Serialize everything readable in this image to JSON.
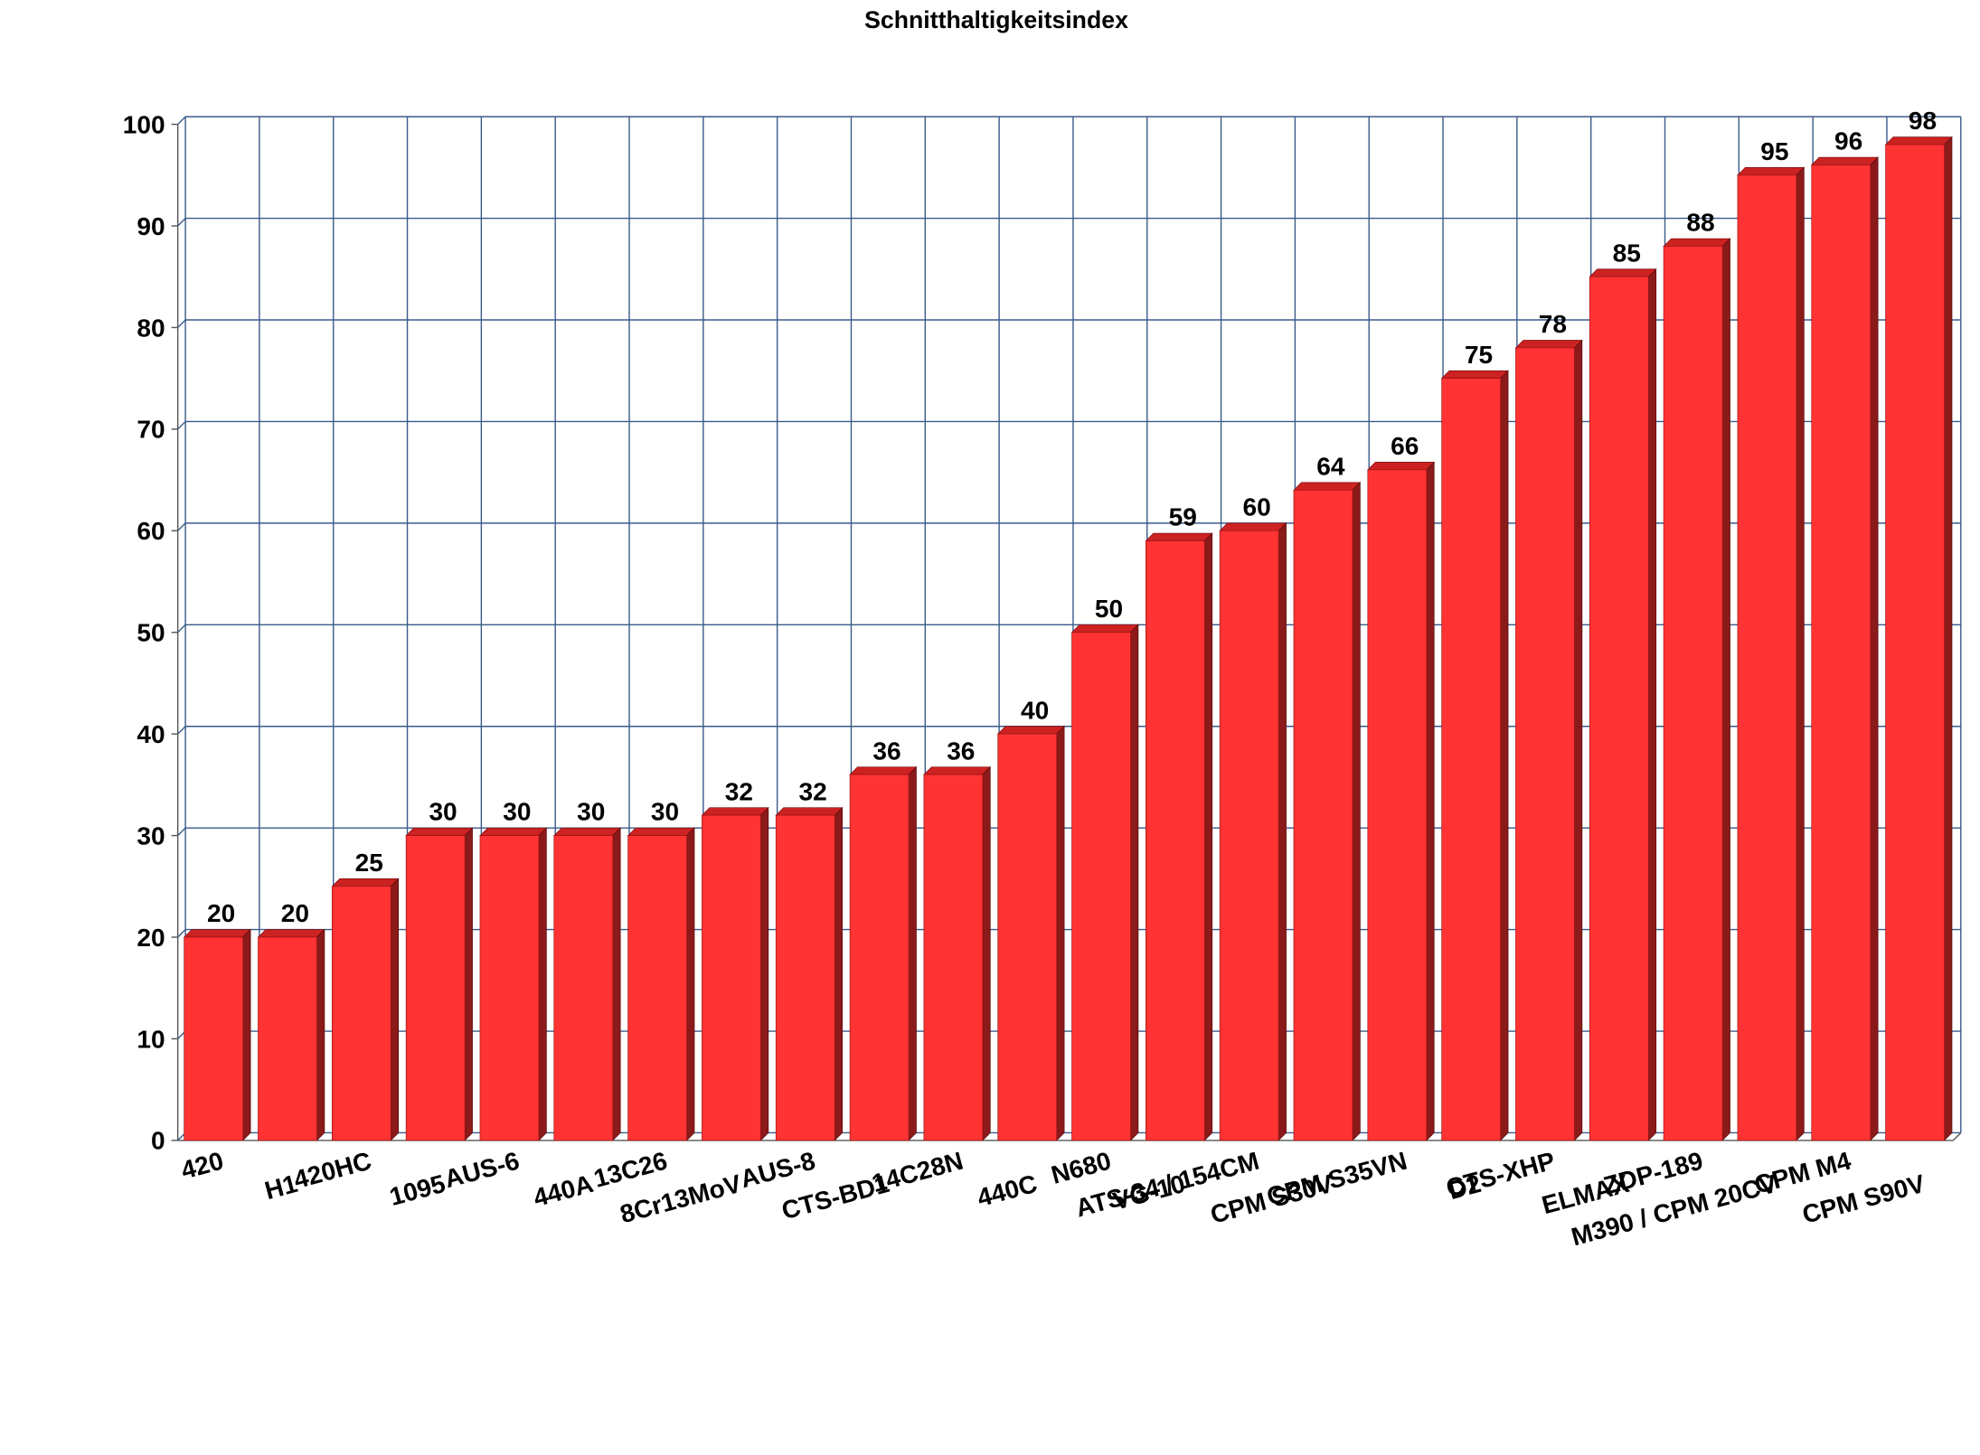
{
  "chart_data": {
    "type": "bar",
    "title": "Schnitthaltigkeitsindex",
    "categories": [
      "420",
      "H1",
      "420HC",
      "1095",
      "AUS-6",
      "440A",
      "13C26",
      "8Cr13MoV",
      "AUS-8",
      "CTS-BD1",
      "14C28N",
      "440C",
      "N680",
      "VG-10",
      "ATS-34 / 154CM",
      "CPM S30V",
      "CPM S35VN",
      "D2",
      "CTS-XHP",
      "ELMAX",
      "ZDP-189",
      "M390 / CPM 20CV",
      "CPM M4",
      "CPM S90V"
    ],
    "values": [
      20,
      20,
      25,
      30,
      30,
      30,
      30,
      32,
      32,
      36,
      36,
      40,
      50,
      59,
      60,
      64,
      66,
      75,
      78,
      85,
      88,
      95,
      96,
      98
    ],
    "color": "#ff3333",
    "ylim": [
      0,
      100
    ],
    "yticks": [
      0,
      10,
      20,
      30,
      40,
      50,
      60,
      70,
      80,
      90,
      100
    ],
    "grid": true
  }
}
